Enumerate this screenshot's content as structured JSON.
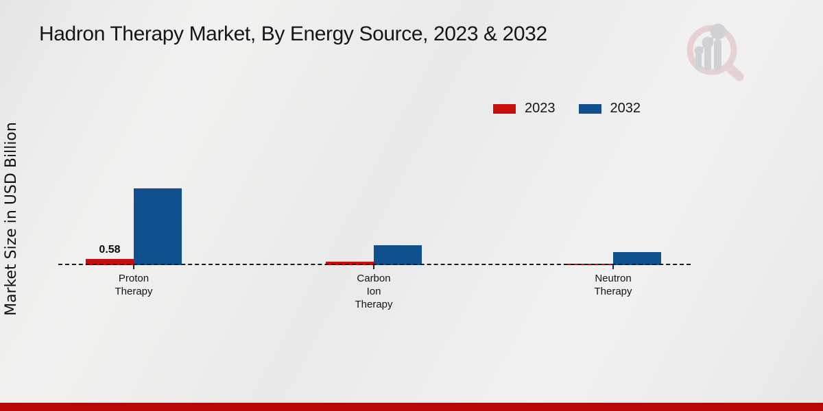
{
  "chart_data": {
    "type": "bar",
    "title": "Hadron Therapy Market, By Energy Source, 2023 & 2032",
    "ylabel": "Market Size in USD Billion",
    "xlabel": "",
    "categories": [
      "Proton Therapy",
      "Carbon Ion Therapy",
      "Neutron Therapy"
    ],
    "series": [
      {
        "name": "2023",
        "color": "#c70d0e",
        "values": [
          0.58,
          0.3,
          0.12
        ]
      },
      {
        "name": "2032",
        "color": "#11508f",
        "values": [
          7.2,
          1.9,
          1.2
        ]
      }
    ],
    "data_labels": [
      {
        "series": "2023",
        "category": "Proton Therapy",
        "text": "0.58"
      }
    ],
    "baseline_style": "dashed",
    "grid": false,
    "value_axis_visible": false,
    "legend_position": "top-right"
  },
  "legend": {
    "items": [
      {
        "label": "2023",
        "color": "#c70d0e"
      },
      {
        "label": "2032",
        "color": "#11508f"
      }
    ]
  },
  "branding": {
    "watermark_icon": "magnifier-bar-chart-logo",
    "accent_bar_color": "#b90708"
  },
  "colors": {
    "background": "#ececec",
    "text": "#141414",
    "baseline": "#1a1a1a",
    "watermark_ring": "#e4cecf",
    "watermark_gray": "#cdced3"
  }
}
